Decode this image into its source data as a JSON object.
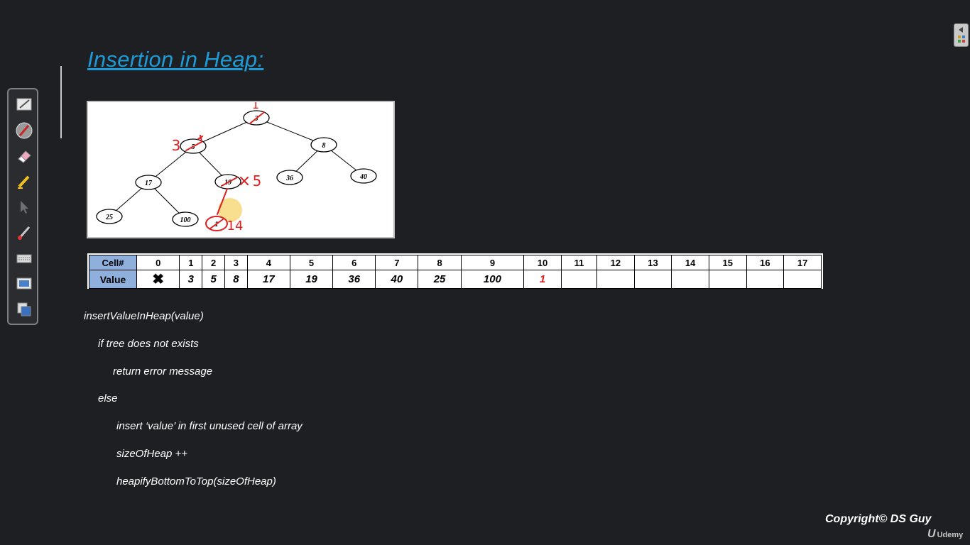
{
  "title": "Insertion in Heap:",
  "toolbar": {
    "tools": [
      "pen-icon",
      "marker-icon",
      "eraser-icon",
      "highlighter-icon",
      "pointer-icon",
      "brush-icon",
      "keyboard-icon",
      "screen-icon",
      "clipboard-icon"
    ]
  },
  "tree": {
    "nodes": [
      "3",
      "5",
      "8",
      "17",
      "19",
      "36",
      "40",
      "25",
      "100",
      "1"
    ],
    "annotations": [
      "1",
      "3",
      "5",
      "14"
    ]
  },
  "table": {
    "row_header_cell": "Cell#",
    "row_header_value": "Value",
    "cells": [
      "0",
      "1",
      "2",
      "3",
      "4",
      "5",
      "6",
      "7",
      "8",
      "9",
      "10",
      "11",
      "12",
      "13",
      "14",
      "15",
      "16",
      "17"
    ],
    "values": [
      "✖",
      "3",
      "5",
      "8",
      "17",
      "19",
      "36",
      "40",
      "25",
      "100",
      "1",
      "",
      "",
      "",
      "",
      "",
      "",
      ""
    ]
  },
  "code": {
    "line1": "insertValueInHeap(value)",
    "line2": "if tree does not exists",
    "line3": "return error message",
    "line4": "else",
    "line5": "insert ‘value’ in first unused cell of array",
    "line6": "sizeOfHeap ++",
    "line7": "heapifyBottomToTop(sizeOfHeap)"
  },
  "copyright": "Copyright© DS Guy",
  "brand": "Udemy",
  "colors": {
    "title": "#1e9bd7",
    "header_fill": "#8fb0dc",
    "annotation_red": "#e02020"
  }
}
